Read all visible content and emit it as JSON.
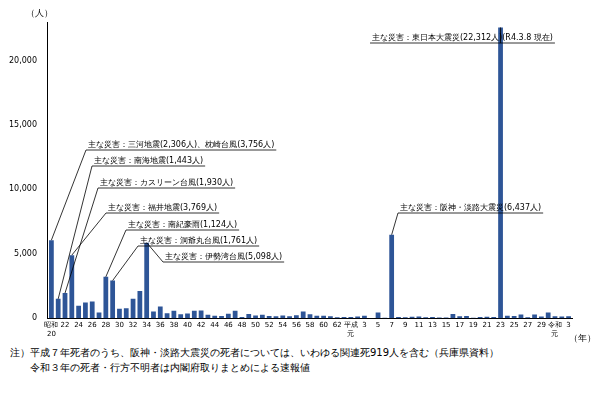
{
  "chart_data": {
    "type": "bar",
    "y_label": "（人）",
    "x_label": "（年）",
    "categories": [
      "昭和\n20",
      null,
      "22",
      null,
      "24",
      null,
      "26",
      null,
      "28",
      null,
      "30",
      null,
      "32",
      null,
      "34",
      null,
      "36",
      null,
      "38",
      null,
      "40",
      null,
      "42",
      null,
      "44",
      null,
      "46",
      null,
      "48",
      null,
      "50",
      null,
      "52",
      null,
      "54",
      null,
      "56",
      null,
      "58",
      null,
      "60",
      null,
      "62",
      null,
      "平成\n元",
      null,
      "3",
      null,
      "5",
      null,
      "7",
      null,
      "9",
      null,
      "11",
      null,
      "13",
      null,
      "15",
      null,
      "17",
      null,
      "19",
      null,
      "21",
      null,
      "23",
      null,
      "25",
      null,
      "27",
      null,
      "29",
      null,
      "令和\n元",
      null,
      "3"
    ],
    "values": [
      6062,
      1504,
      1950,
      4897,
      975,
      1210,
      1291,
      449,
      3212,
      2926,
      727,
      765,
      1515,
      2120,
      5868,
      528,
      902,
      381,
      575,
      307,
      367,
      578,
      607,
      259,
      183,
      163,
      350,
      587,
      85,
      324,
      213,
      273,
      174,
      153,
      208,
      148,
      232,
      524,
      301,
      199,
      199,
      148,
      69,
      93,
      96,
      123,
      190,
      19,
      438,
      39,
      6482,
      84,
      71,
      109,
      141,
      78,
      90,
      48,
      62,
      327,
      153,
      177,
      39,
      100,
      115,
      89,
      22576,
      190,
      173,
      280,
      65,
      297,
      129,
      452,
      159,
      128,
      150
    ],
    "color": "#2e5597",
    "ylim": [
      0,
      23000
    ],
    "yticks": [
      0,
      {
        "value": 5000,
        "label": "5,000"
      },
      {
        "value": 10000,
        "label": "10,000"
      },
      {
        "value": 15000,
        "label": "15,000"
      },
      {
        "value": 20000,
        "label": "20,000"
      }
    ],
    "grid": false,
    "annotations": [
      "主な災害：三河地震(2,306人)、枕崎台風(3,756人)",
      "主な災害：南海地震(1,443人)",
      "主な災害：カスリーン台風(1,930人)",
      "主な災害：福井地震(3,769人)",
      "主な災害：南紀豪雨(1,124人)",
      "主な災害：洞爺丸台風(1,761人)",
      "主な災害：伊勢湾台風(5,098人)",
      "主な災害：阪神・淡路大震災(6,437人)",
      "主な災害：東日本大震災(22,312人)(R4.3.8 現在)"
    ],
    "notes": [
      "注）平成７年死者のうち、阪神・淡路大震災の死者については、いわゆる関連死919人を含む（兵庫県資料）",
      "　　令和３年の死者・行方不明者は内閣府取りまとめによる速報値"
    ]
  }
}
